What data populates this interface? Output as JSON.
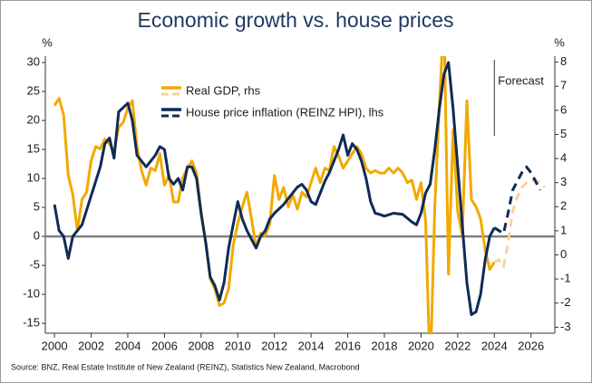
{
  "chart_data": {
    "type": "line",
    "title": "Economic growth vs. house prices",
    "y_label": "%",
    "y2_label": "%",
    "source": "Source: BNZ, Real Estate Institute of New Zealand (REINZ), Statistics New Zealand, Macrobond",
    "annotation": {
      "text": "Forecast",
      "x": 2024
    },
    "forecast_from": 2024,
    "xlim": [
      1999.5,
      2027.3
    ],
    "xticks": [
      2000,
      2002,
      2004,
      2006,
      2008,
      2010,
      2012,
      2014,
      2016,
      2018,
      2020,
      2022,
      2024,
      2026
    ],
    "ylim": [
      -16.7,
      31.1
    ],
    "yticks": [
      -15,
      -10,
      -5,
      0,
      5,
      10,
      15,
      20,
      25,
      30
    ],
    "y2lim": [
      -3.25,
      8.25
    ],
    "y2ticks": [
      -3,
      -2,
      -1,
      0,
      1,
      2,
      3,
      4,
      5,
      6,
      7,
      8
    ],
    "zero_line": true,
    "series": [
      {
        "name": "Real GDP, rhs",
        "color": "#f2a900",
        "forecast_color": "#f9d49a",
        "axis": "y2",
        "x": [
          2000,
          2000.25,
          2000.5,
          2000.75,
          2001,
          2001.25,
          2001.5,
          2001.75,
          2002,
          2002.25,
          2002.5,
          2002.75,
          2003,
          2003.25,
          2003.5,
          2003.75,
          2004,
          2004.25,
          2004.5,
          2004.75,
          2005,
          2005.25,
          2005.5,
          2005.75,
          2006,
          2006.25,
          2006.5,
          2006.75,
          2007,
          2007.25,
          2007.5,
          2007.75,
          2008,
          2008.25,
          2008.5,
          2008.75,
          2009,
          2009.25,
          2009.5,
          2009.75,
          2010,
          2010.25,
          2010.5,
          2010.75,
          2011,
          2011.25,
          2011.5,
          2011.75,
          2012,
          2012.25,
          2012.5,
          2012.75,
          2013,
          2013.25,
          2013.5,
          2013.75,
          2014,
          2014.25,
          2014.5,
          2014.75,
          2015,
          2015.25,
          2015.5,
          2015.75,
          2016,
          2016.25,
          2016.5,
          2016.75,
          2017,
          2017.25,
          2017.5,
          2017.75,
          2018,
          2018.25,
          2018.5,
          2018.75,
          2019,
          2019.25,
          2019.5,
          2019.75,
          2020,
          2020.25,
          2020.5,
          2020.75,
          2021,
          2021.25,
          2021.5,
          2021.75,
          2022,
          2022.25,
          2022.5,
          2022.75,
          2023,
          2023.25,
          2023.5,
          2023.75,
          2024,
          2024.25,
          2024.5,
          2024.75,
          2025,
          2025.25,
          2025.5,
          2025.75,
          2026,
          2026.25,
          2026.5,
          2026.75
        ],
        "values": [
          6.2,
          6.5,
          5.8,
          3.3,
          2.5,
          1,
          2.3,
          2.6,
          3.9,
          4.5,
          4.4,
          4.8,
          4.6,
          4.3,
          5.3,
          5.5,
          6.1,
          6.4,
          4.5,
          3.5,
          2.9,
          3.6,
          3.5,
          4.2,
          2.9,
          3.3,
          2.2,
          2.2,
          3.2,
          3.6,
          3.9,
          3.4,
          1.8,
          0.5,
          -1,
          -1.4,
          -2.1,
          -2,
          -1.4,
          0.4,
          1.3,
          2,
          2.6,
          1.5,
          0.3,
          0.9,
          0.8,
          1.3,
          3.3,
          2.3,
          2.8,
          2,
          2.5,
          1.9,
          2.6,
          2.4,
          3,
          3.6,
          3,
          3.6,
          3.5,
          4.5,
          4.1,
          3.6,
          3.9,
          4.2,
          4.5,
          4.2,
          3.6,
          3.4,
          3.5,
          3.4,
          3.4,
          3.6,
          3.4,
          3.6,
          3.4,
          3,
          3.1,
          2.3,
          3,
          1.4,
          -5,
          2,
          6.2,
          10,
          -0.8,
          5.2,
          1.8,
          0.8,
          6.4,
          2.3,
          2,
          1.5,
          0.2,
          -0.6,
          -0.3,
          -0.2,
          -0.5,
          0.5,
          1.8,
          2.4,
          2.8,
          3,
          3.1,
          3.1,
          3,
          2.8
        ]
      },
      {
        "name": "House price inflation (REINZ HPI), lhs",
        "color": "#0f2b56",
        "forecast_color": "#0f2b56",
        "axis": "y",
        "x": [
          2000,
          2000.25,
          2000.5,
          2000.75,
          2001,
          2001.5,
          2002,
          2002.5,
          2002.75,
          2003,
          2003.25,
          2003.5,
          2004,
          2004.25,
          2004.5,
          2005,
          2005.5,
          2005.75,
          2006,
          2006.25,
          2006.5,
          2006.75,
          2007,
          2007.25,
          2007.5,
          2007.75,
          2008,
          2008.25,
          2008.5,
          2008.75,
          2009,
          2009.25,
          2009.5,
          2009.75,
          2010,
          2010.25,
          2010.5,
          2010.75,
          2011,
          2011.25,
          2011.5,
          2011.75,
          2012,
          2012.5,
          2013,
          2013.25,
          2013.5,
          2013.75,
          2014,
          2014.25,
          2014.75,
          2015,
          2015.5,
          2015.75,
          2016,
          2016.25,
          2016.5,
          2016.75,
          2017,
          2017.25,
          2017.5,
          2017.75,
          2018,
          2018.5,
          2019,
          2019.5,
          2019.75,
          2020,
          2020.25,
          2020.5,
          2020.75,
          2021,
          2021.25,
          2021.5,
          2021.75,
          2022,
          2022.25,
          2022.5,
          2022.75,
          2023,
          2023.25,
          2023.5,
          2023.75,
          2024,
          2024.25,
          2024.5,
          2024.75,
          2025,
          2025.5,
          2025.75,
          2026,
          2026.5
        ],
        "values": [
          5.5,
          1,
          0,
          -3.8,
          0,
          2,
          7,
          12,
          16,
          17,
          13.5,
          21.5,
          23,
          20,
          14,
          12,
          14,
          15.5,
          15,
          10,
          9,
          10,
          8,
          12,
          12,
          10,
          4,
          -1,
          -7,
          -8.5,
          -11,
          -8,
          -2,
          2,
          6,
          3,
          1,
          -0.5,
          -2,
          0,
          1,
          3,
          4,
          5.5,
          7.5,
          8.5,
          9,
          8,
          6,
          5.5,
          9.5,
          11,
          15,
          17.5,
          14,
          16,
          15,
          13,
          10,
          6,
          4,
          3.8,
          3.5,
          4,
          3.8,
          2.5,
          2,
          4,
          7.5,
          9,
          15,
          22,
          28,
          30,
          22,
          12,
          2,
          -8,
          -13.5,
          -13,
          -10,
          -4,
          0,
          1.5,
          1,
          0.5,
          4,
          8,
          11,
          12,
          11,
          8
        ]
      }
    ]
  }
}
